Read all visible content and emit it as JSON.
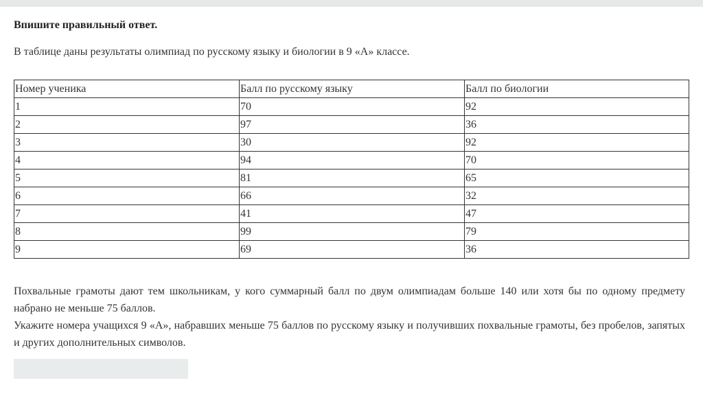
{
  "title": "Впишите правильный ответ.",
  "intro": "В таблице даны результаты олимпиад по русскому языку и биологии в 9 «А» классе.",
  "table": {
    "headers": [
      "Номер ученика",
      "Балл по русскому языку",
      "Балл по биологии"
    ],
    "rows": [
      [
        "1",
        "70",
        "92"
      ],
      [
        "2",
        "97",
        "36"
      ],
      [
        "3",
        "30",
        "92"
      ],
      [
        "4",
        "94",
        "70"
      ],
      [
        "5",
        "81",
        "65"
      ],
      [
        "6",
        "66",
        "32"
      ],
      [
        "7",
        "41",
        "47"
      ],
      [
        "8",
        "99",
        "79"
      ],
      [
        "9",
        "69",
        "36"
      ]
    ]
  },
  "paragraph1": "Похвальные грамоты дают тем школьникам, у кого суммарный балл по двум олимпиадам больше 140 или хотя бы по одному предмету набрано не меньше 75 баллов.",
  "paragraph2": "Укажите номера учащихся 9 «А», набравших меньше 75 баллов по русскому языку и получивших похвальные грамоты, без пробелов, запятых и других дополнительных символов.",
  "answer": {
    "value": ""
  }
}
